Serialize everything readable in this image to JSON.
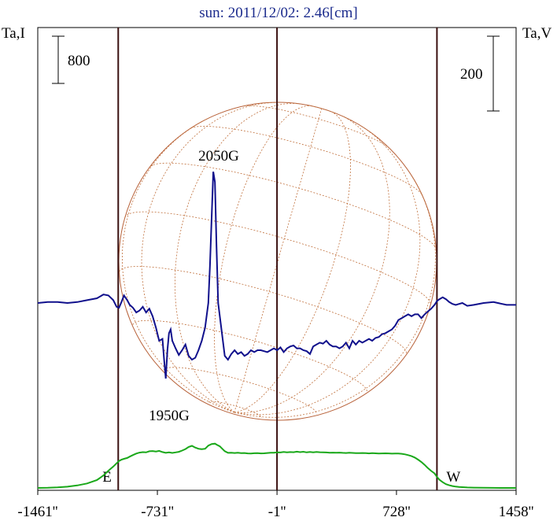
{
  "chart_data": {
    "type": "line",
    "title": "sun: 2011/12/02: 2.46[cm]",
    "left_axis_label": "Ta,I",
    "right_axis_label": "Ta,V",
    "left_scale_bar": "800",
    "right_scale_bar": "200",
    "xlim": [
      -1461,
      1458
    ],
    "x_ticks": [
      {
        "value": -1461,
        "label": "-1461''"
      },
      {
        "value": -731,
        "label": "-731''"
      },
      {
        "value": -1,
        "label": "-1''"
      },
      {
        "value": 728,
        "label": "728''"
      },
      {
        "value": 1458,
        "label": "1458''"
      }
    ],
    "vertical_markers": [
      {
        "value": -970,
        "label": "E"
      },
      {
        "value": -1,
        "label": ""
      },
      {
        "value": 975,
        "label": "W"
      }
    ],
    "annotations": [
      {
        "text": "2050G",
        "x": -390
      },
      {
        "text": "1950G",
        "x": -680
      }
    ],
    "grid": false,
    "series": [
      {
        "color": "#1aa81a",
        "x": [
          -1461,
          -1400,
          -1340,
          -1280,
          -1220,
          -1160,
          -1100,
          -1060,
          -1030,
          -1000,
          -980,
          -965,
          -950,
          -935,
          -915,
          -900,
          -880,
          -860,
          -840,
          -820,
          -800,
          -780,
          -760,
          -740,
          -720,
          -700,
          -680,
          -660,
          -640,
          -620,
          -600,
          -580,
          -560,
          -540,
          -520,
          -500,
          -480,
          -460,
          -440,
          -420,
          -400,
          -380,
          -365,
          -350,
          -335,
          -320,
          -300,
          -280,
          -260,
          -240,
          -220,
          -200,
          -180,
          -160,
          -140,
          -120,
          -100,
          -80,
          -60,
          -40,
          -20,
          0,
          20,
          40,
          60,
          80,
          100,
          120,
          140,
          160,
          180,
          200,
          220,
          240,
          260,
          280,
          300,
          320,
          340,
          360,
          380,
          400,
          420,
          440,
          460,
          480,
          500,
          520,
          540,
          560,
          580,
          600,
          620,
          640,
          660,
          680,
          700,
          720,
          740,
          760,
          780,
          800,
          820,
          840,
          860,
          880,
          900,
          920,
          940,
          960,
          975,
          990,
          1010,
          1030,
          1050,
          1070,
          1090,
          1110,
          1130,
          1160,
          1200,
          1260,
          1320,
          1400,
          1458
        ],
        "y": [
          1,
          20,
          70,
          160,
          310,
          560,
          980,
          1560,
          2150,
          2670,
          3070,
          3360,
          3520,
          3630,
          3740,
          3900,
          4100,
          4280,
          4400,
          4460,
          4430,
          4570,
          4600,
          4540,
          4620,
          4470,
          4370,
          4430,
          4360,
          4430,
          4500,
          4660,
          4840,
          5110,
          5250,
          5030,
          4880,
          4820,
          4880,
          5270,
          5470,
          5520,
          5340,
          5190,
          4880,
          4580,
          4370,
          4380,
          4350,
          4390,
          4330,
          4350,
          4300,
          4280,
          4320,
          4330,
          4300,
          4310,
          4350,
          4380,
          4390,
          4440,
          4420,
          4480,
          4430,
          4470,
          4450,
          4520,
          4460,
          4510,
          4430,
          4480,
          4430,
          4490,
          4450,
          4440,
          4420,
          4390,
          4400,
          4380,
          4400,
          4370,
          4350,
          4380,
          4360,
          4340,
          4330,
          4350,
          4330,
          4300,
          4330,
          4310,
          4290,
          4300,
          4310,
          4300,
          4270,
          4280,
          4280,
          4250,
          4190,
          4090,
          3960,
          3780,
          3530,
          3240,
          2870,
          2470,
          2120,
          1810,
          1380,
          1030,
          720,
          470,
          330,
          240,
          170,
          130,
          100,
          60,
          40,
          30,
          10,
          2,
          1
        ]
      },
      {
        "color": "#10108c",
        "x": [
          -1461,
          -1400,
          -1340,
          -1280,
          -1220,
          -1160,
          -1100,
          -1060,
          -1030,
          -1000,
          -980,
          -965,
          -950,
          -935,
          -915,
          -900,
          -880,
          -860,
          -840,
          -820,
          -800,
          -780,
          -760,
          -740,
          -720,
          -700,
          -690,
          -680,
          -670,
          -660,
          -650,
          -640,
          -620,
          -600,
          -580,
          -560,
          -540,
          -520,
          -500,
          -480,
          -460,
          -440,
          -420,
          -410,
          -400,
          -390,
          -380,
          -370,
          -360,
          -340,
          -320,
          -300,
          -280,
          -260,
          -240,
          -220,
          -200,
          -180,
          -160,
          -140,
          -120,
          -100,
          -80,
          -60,
          -40,
          -20,
          0,
          20,
          40,
          60,
          80,
          100,
          120,
          140,
          160,
          180,
          200,
          220,
          240,
          260,
          280,
          300,
          320,
          340,
          360,
          380,
          400,
          420,
          440,
          460,
          480,
          500,
          520,
          540,
          560,
          580,
          600,
          620,
          640,
          660,
          680,
          700,
          720,
          740,
          760,
          780,
          800,
          820,
          840,
          860,
          880,
          900,
          920,
          940,
          960,
          975,
          990,
          1010,
          1030,
          1050,
          1070,
          1090,
          1110,
          1130,
          1160,
          1200,
          1260,
          1320,
          1400,
          1458
        ],
        "y": [
          0,
          1,
          1,
          0,
          1,
          3,
          5,
          9,
          8,
          3,
          -4,
          -5,
          1,
          8,
          3,
          -2,
          -5,
          -10,
          -8,
          -4,
          -10,
          -6,
          -14,
          -26,
          -40,
          -38,
          -60,
          -80,
          -50,
          -32,
          -28,
          -40,
          -48,
          -55,
          -50,
          -44,
          -56,
          -60,
          -58,
          -50,
          -40,
          -26,
          0,
          40,
          90,
          139,
          128,
          60,
          0,
          -28,
          -56,
          -60,
          -54,
          -50,
          -54,
          -52,
          -56,
          -54,
          -50,
          -52,
          -50,
          -50,
          -51,
          -52,
          -50,
          -48,
          -50,
          -47,
          -52,
          -48,
          -46,
          -45,
          -48,
          -48,
          -50,
          -51,
          -54,
          -46,
          -44,
          -42,
          -43,
          -40,
          -44,
          -46,
          -46,
          -48,
          -46,
          -42,
          -48,
          -40,
          -44,
          -40,
          -42,
          -40,
          -38,
          -40,
          -37,
          -36,
          -33,
          -32,
          -30,
          -28,
          -24,
          -18,
          -16,
          -14,
          -12,
          -14,
          -12,
          -12,
          -16,
          -12,
          -9,
          -6,
          -2,
          2,
          4,
          6,
          4,
          1,
          -1,
          -2,
          -1,
          0,
          -3,
          -2,
          0,
          1,
          -2,
          -2
        ]
      }
    ]
  }
}
